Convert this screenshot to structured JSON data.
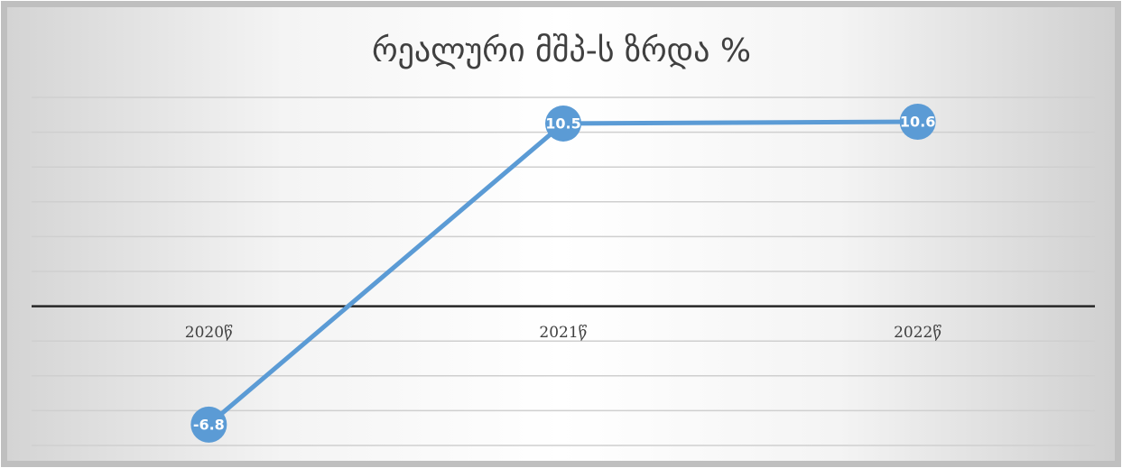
{
  "chart_data": {
    "type": "line",
    "title": "რეალური მშპ-ს ზრდა %",
    "categories": [
      "2020წ",
      "2021წ",
      "2022წ"
    ],
    "series": [
      {
        "name": "რეალური მშპ-ს ზრდა %",
        "color": "#5b9bd5",
        "values": [
          -6.8,
          10.5,
          10.6
        ]
      }
    ],
    "ylim": [
      -8,
      12
    ],
    "yticks": [
      -8,
      -6,
      -4,
      -2,
      0,
      2,
      4,
      6,
      8,
      10,
      12
    ],
    "grid": true
  }
}
